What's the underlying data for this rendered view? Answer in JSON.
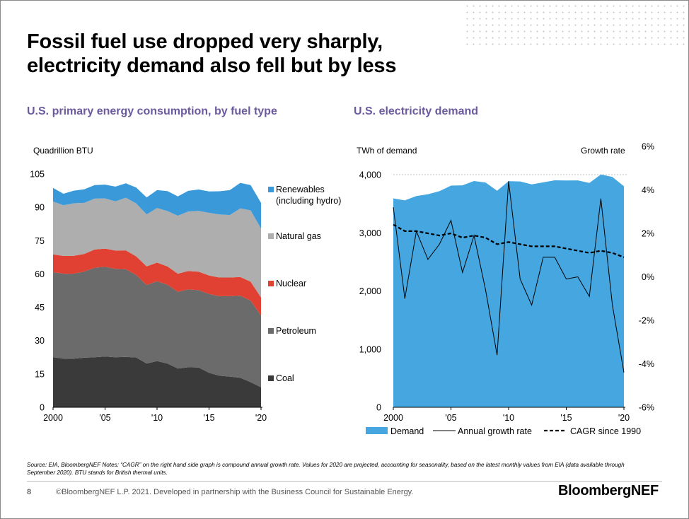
{
  "slide": {
    "title_line1": "Fossil fuel use dropped very sharply,",
    "title_line2": "electricity demand also fell but by less",
    "page_number": "8",
    "copyright": "©BloombergNEF L.P. 2021. Developed in partnership with the Business Council for Sustainable Energy.",
    "brand": "BloombergNEF",
    "source_note": "Source: EIA, BloombergNEF   Notes: “CAGR” on the right hand side graph is compound annual growth rate. Values for 2020 are projected, accounting for seasonality, based on the latest monthly values from EIA (data available through September 2020). BTU stands for British thermal units."
  },
  "chart_data": [
    {
      "type": "area",
      "stacked": true,
      "title": "U.S. primary energy consumption, by fuel type",
      "ylabel": "Quadrillion BTU",
      "ylim": [
        0,
        105
      ],
      "yticks": [
        "0",
        "15",
        "30",
        "45",
        "60",
        "75",
        "90",
        "105"
      ],
      "x": [
        2000,
        2001,
        2002,
        2003,
        2004,
        2005,
        2006,
        2007,
        2008,
        2009,
        2010,
        2011,
        2012,
        2013,
        2014,
        2015,
        2016,
        2017,
        2018,
        2019,
        2020
      ],
      "xtick_labels": [
        "2000",
        "'05",
        "'10",
        "'15",
        "'20"
      ],
      "series": [
        {
          "name": "Coal",
          "color": "#3a3a3a",
          "values": [
            22.5,
            21.9,
            21.9,
            22.3,
            22.5,
            22.8,
            22.5,
            22.7,
            22.4,
            19.7,
            20.8,
            19.7,
            17.4,
            18.0,
            17.9,
            15.5,
            14.2,
            13.8,
            13.3,
            11.3,
            9.0
          ]
        },
        {
          "name": "Petroleum",
          "color": "#6b6b6b",
          "values": [
            38.3,
            38.2,
            38.2,
            38.8,
            40.3,
            40.4,
            39.8,
            39.4,
            37.1,
            35.3,
            35.9,
            35.4,
            34.6,
            35.0,
            34.8,
            35.5,
            35.8,
            36.2,
            36.9,
            36.7,
            32.2
          ]
        },
        {
          "name": "Nuclear",
          "color": "#e04132",
          "values": [
            8.0,
            8.0,
            8.1,
            7.9,
            8.2,
            8.2,
            8.2,
            8.5,
            8.4,
            8.4,
            8.4,
            8.3,
            8.1,
            8.3,
            8.3,
            8.3,
            8.4,
            8.4,
            8.4,
            8.5,
            8.2
          ]
        },
        {
          "name": "Natural gas",
          "color": "#aeaeae",
          "values": [
            23.8,
            22.8,
            23.6,
            23.0,
            22.9,
            22.6,
            22.2,
            23.7,
            23.8,
            23.4,
            24.6,
            24.9,
            26.1,
            26.8,
            27.4,
            28.2,
            28.4,
            28.1,
            30.9,
            32.1,
            31.0
          ]
        },
        {
          "name": "Renewables (including hydro)",
          "color": "#3a9ad9",
          "values": [
            6.1,
            5.2,
            5.7,
            6.1,
            6.1,
            6.2,
            6.6,
            6.5,
            7.2,
            7.6,
            8.0,
            9.0,
            8.7,
            9.3,
            9.6,
            9.6,
            10.4,
            11.2,
            11.5,
            11.4,
            11.6
          ]
        }
      ],
      "legend_labels": {
        "renewables_1": "Renewables",
        "renewables_2": "(including hydro)",
        "natural_gas": "Natural gas",
        "nuclear": "Nuclear",
        "petroleum": "Petroleum",
        "coal": "Coal"
      }
    },
    {
      "type": "area",
      "title": "U.S. electricity demand",
      "ylabel": "TWh of demand",
      "y2label": "Growth rate",
      "ylim": [
        0,
        4000
      ],
      "y2lim": [
        -6,
        6
      ],
      "yticks": [
        "0",
        "1,000",
        "2,000",
        "3,000",
        "4,000"
      ],
      "y2ticks": [
        "-6%",
        "-4%",
        "-2%",
        "0%",
        "2%",
        "4%",
        "6%"
      ],
      "x": [
        2000,
        2001,
        2002,
        2003,
        2004,
        2005,
        2006,
        2007,
        2008,
        2009,
        2010,
        2011,
        2012,
        2013,
        2014,
        2015,
        2016,
        2017,
        2018,
        2019,
        2020
      ],
      "xtick_labels": [
        "2000",
        "'05",
        "'10",
        "'15",
        "'20"
      ],
      "series": [
        {
          "name": "Demand",
          "axis": "left",
          "color": "#45a6e0",
          "values": [
            3592,
            3557,
            3632,
            3662,
            3716,
            3811,
            3817,
            3890,
            3865,
            3724,
            3887,
            3883,
            3832,
            3868,
            3903,
            3900,
            3902,
            3857,
            4003,
            3960,
            3800
          ]
        },
        {
          "name": "Annual growth rate",
          "axis": "right",
          "color": "#000000",
          "style": "solid",
          "values": [
            3.2,
            -1.0,
            2.1,
            0.8,
            1.5,
            2.6,
            0.2,
            1.9,
            -0.6,
            -3.6,
            4.4,
            -0.1,
            -1.3,
            0.9,
            0.9,
            -0.1,
            0.0,
            -0.9,
            3.6,
            -1.3,
            -4.4
          ]
        },
        {
          "name": "CAGR since 1990",
          "axis": "right",
          "color": "#000000",
          "style": "dashed",
          "values": [
            2.4,
            2.1,
            2.1,
            2.0,
            1.9,
            2.0,
            1.8,
            1.9,
            1.8,
            1.5,
            1.6,
            1.5,
            1.4,
            1.4,
            1.4,
            1.3,
            1.2,
            1.1,
            1.2,
            1.1,
            0.9
          ]
        }
      ],
      "legend_labels": {
        "demand": "Demand",
        "annual_growth": "Annual growth rate",
        "cagr": "CAGR since 1990"
      }
    }
  ]
}
